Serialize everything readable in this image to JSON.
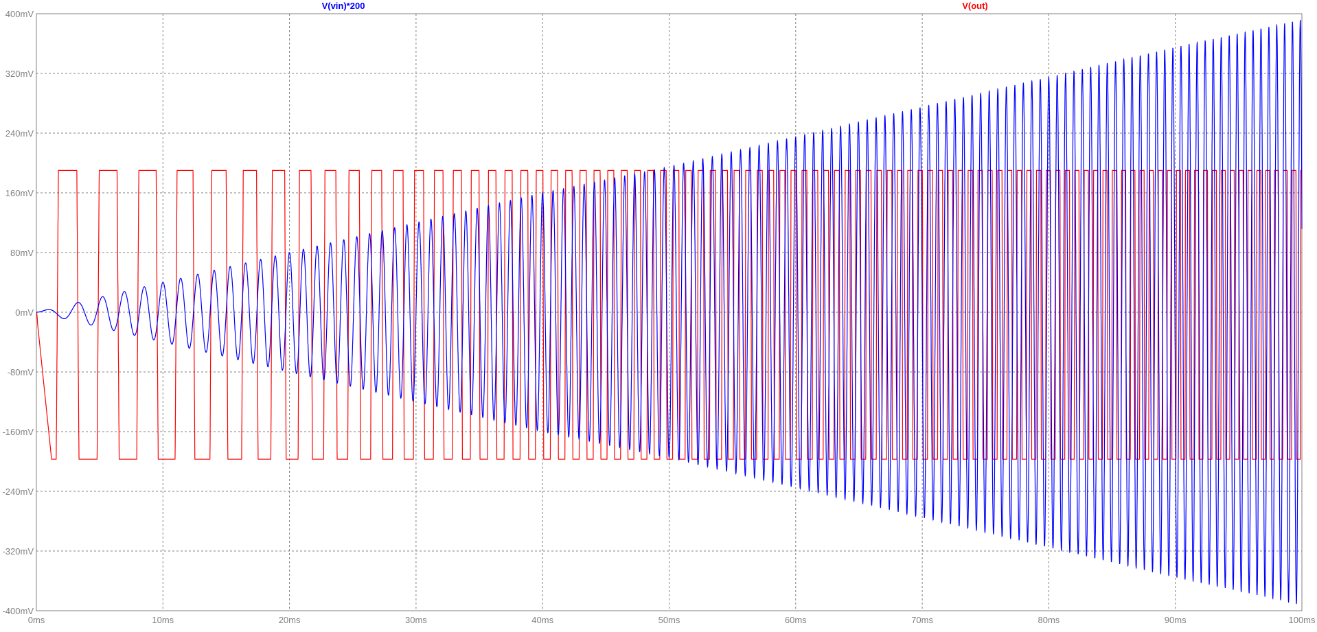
{
  "chart_data": {
    "type": "line",
    "x_unit": "ms",
    "y_unit": "mV",
    "xlim": [
      0,
      100
    ],
    "ylim": [
      -400,
      400
    ],
    "x_ticks": [
      0,
      10,
      20,
      30,
      40,
      50,
      60,
      70,
      80,
      90,
      100
    ],
    "x_tick_labels": [
      "0ms",
      "10ms",
      "20ms",
      "30ms",
      "40ms",
      "50ms",
      "60ms",
      "70ms",
      "80ms",
      "90ms",
      "100ms"
    ],
    "y_ticks": [
      400,
      320,
      240,
      160,
      80,
      0,
      -80,
      -160,
      -240,
      -320,
      -400
    ],
    "y_tick_labels": [
      "400mV",
      "320mV",
      "240mV",
      "160mV",
      "80mV",
      "0mV",
      "-80mV",
      "-160mV",
      "-240mV",
      "-320mV",
      "-400mV"
    ],
    "grid": true,
    "series": [
      {
        "name": "V(vin)*200",
        "color": "#0000ff",
        "waveform": "chirp-sine",
        "t_ms": [
          0,
          5,
          10,
          20,
          30,
          40,
          50,
          60,
          70,
          80,
          90,
          100
        ],
        "amplitude_mV": [
          0,
          20,
          40,
          80,
          120,
          160,
          195,
          235,
          275,
          315,
          355,
          392
        ],
        "frequency_Hz": [
          300,
          550,
          700,
          900,
          1050,
          1200,
          1300,
          1400,
          1450,
          1500,
          1560,
          1620
        ]
      },
      {
        "name": "V(out)",
        "color": "#ff0000",
        "waveform": "square-inverted",
        "t_ms": [
          0,
          10,
          20,
          30,
          40,
          50,
          60,
          70,
          80,
          90,
          100
        ],
        "high_mV": 190,
        "low_mV": -197,
        "frequency_Hz": [
          300,
          330,
          470,
          620,
          850,
          1000,
          1150,
          1250,
          1320,
          1400,
          1450
        ]
      }
    ]
  }
}
